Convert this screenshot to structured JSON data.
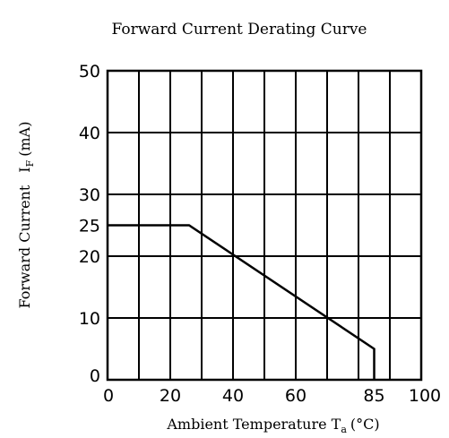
{
  "chart_data": {
    "type": "line",
    "title": "Forward Current Derating Curve",
    "xlabel": "Ambient Temperature T",
    "xlabel_sub": "a",
    "xlabel_unit": "(°C)",
    "ylabel": "Forward Current",
    "ylabel_symbol": "I",
    "ylabel_sub": "F",
    "ylabel_unit": "(mA)",
    "xlim": [
      0,
      100
    ],
    "ylim": [
      0,
      50
    ],
    "grid": true,
    "x_ticks": [
      {
        "value": 0,
        "label": "0"
      },
      {
        "value": 20,
        "label": "20"
      },
      {
        "value": 40,
        "label": "40"
      },
      {
        "value": 60,
        "label": "60"
      },
      {
        "value": 85,
        "label": "85"
      },
      {
        "value": 100,
        "label": "100"
      }
    ],
    "y_ticks": [
      {
        "value": 0,
        "label": "0"
      },
      {
        "value": 10,
        "label": "10"
      },
      {
        "value": 20,
        "label": "20"
      },
      {
        "value": 25,
        "label": "25"
      },
      {
        "value": 30,
        "label": "30"
      },
      {
        "value": 40,
        "label": "40"
      },
      {
        "value": 50,
        "label": "50"
      }
    ],
    "x_grid": [
      10,
      20,
      30,
      40,
      50,
      60,
      70,
      80,
      90
    ],
    "y_grid": [
      10,
      20,
      30,
      40
    ],
    "series": [
      {
        "x": [
          0,
          26,
          85,
          85
        ],
        "y": [
          25,
          25,
          5,
          0
        ]
      }
    ]
  }
}
